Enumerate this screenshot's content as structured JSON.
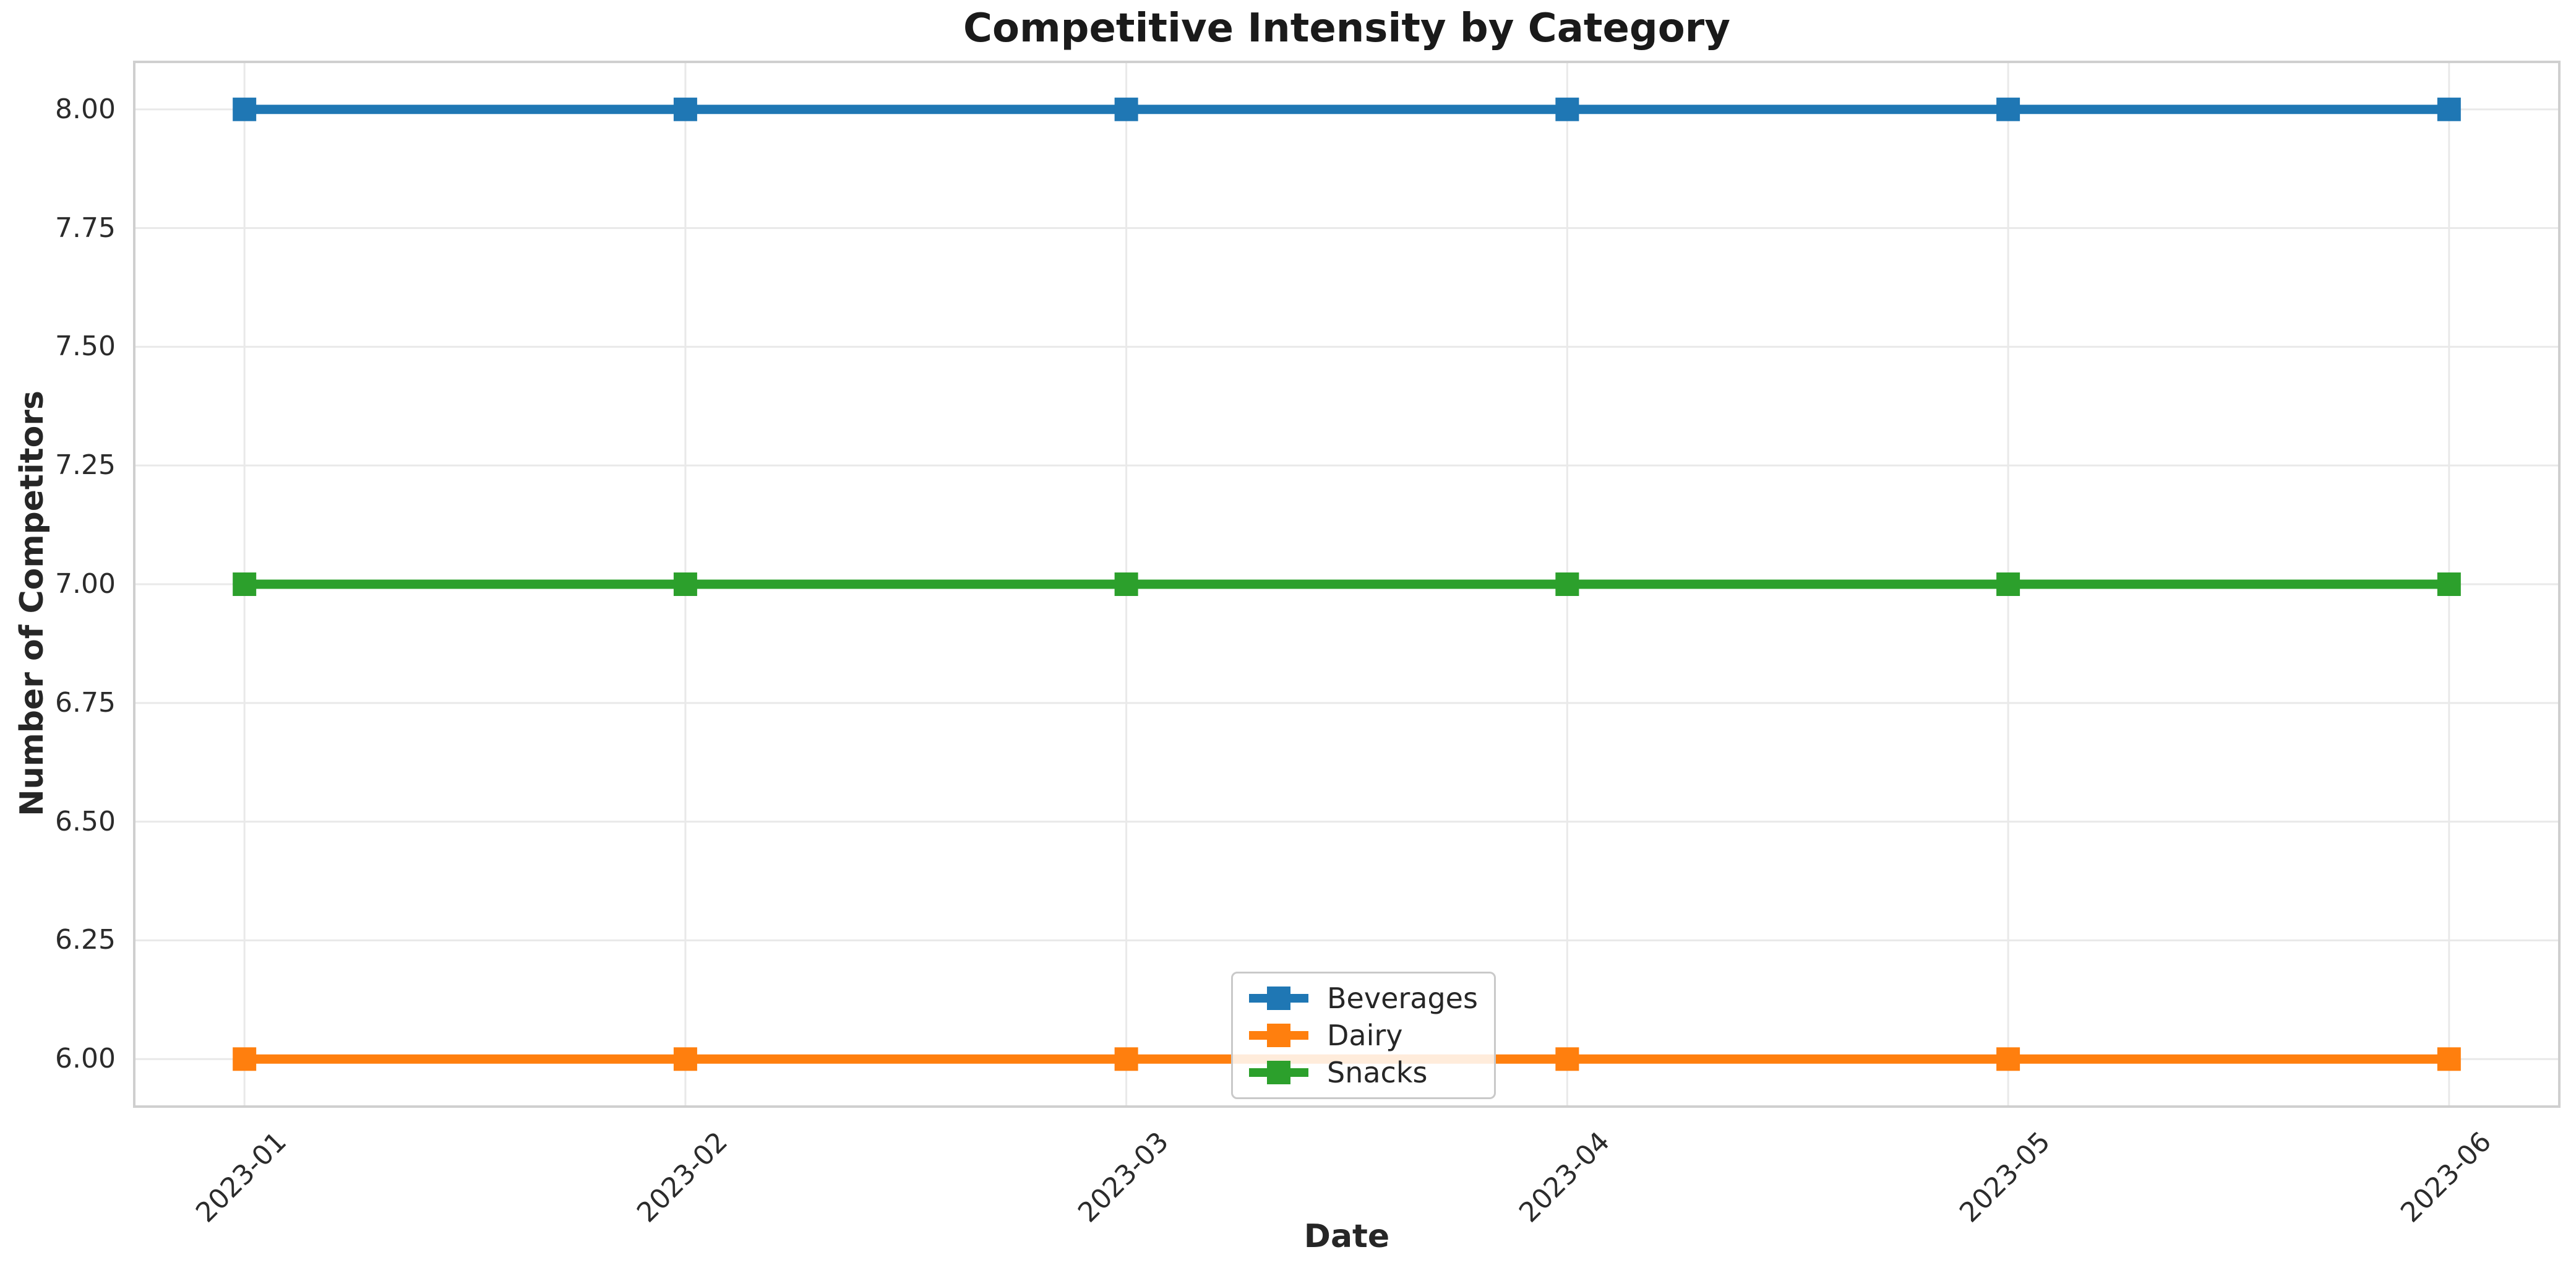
{
  "chart_data": {
    "type": "line",
    "title": "Competitive Intensity by Category",
    "xlabel": "Date",
    "ylabel": "Number of Competitors",
    "categories": [
      "2023-01",
      "2023-02",
      "2023-03",
      "2023-04",
      "2023-05",
      "2023-06"
    ],
    "series": [
      {
        "name": "Beverages",
        "color": "#1f77b4",
        "values": [
          8,
          8,
          8,
          8,
          8,
          8
        ]
      },
      {
        "name": "Dairy",
        "color": "#ff7f0e",
        "values": [
          6,
          6,
          6,
          6,
          6,
          6
        ]
      },
      {
        "name": "Snacks",
        "color": "#2ca02c",
        "values": [
          7,
          7,
          7,
          7,
          7,
          7
        ]
      }
    ],
    "yticks": [
      6.0,
      6.25,
      6.5,
      6.75,
      7.0,
      7.25,
      7.5,
      7.75,
      8.0
    ],
    "ytick_labels": [
      "6.00",
      "6.25",
      "6.50",
      "6.75",
      "7.00",
      "7.25",
      "7.50",
      "7.75",
      "8.00"
    ],
    "ylim": [
      5.9,
      8.1
    ],
    "xlim": [
      -0.25,
      5.25
    ],
    "grid": true,
    "marker": "square",
    "legend": {
      "position": "inside-lower-center",
      "labels": [
        "Beverages",
        "Dairy",
        "Snacks"
      ]
    },
    "colors": {
      "grid": "#e9e9e9",
      "spine": "#cfcfcf",
      "text": "#262626",
      "title": "#1a1a1a"
    }
  }
}
